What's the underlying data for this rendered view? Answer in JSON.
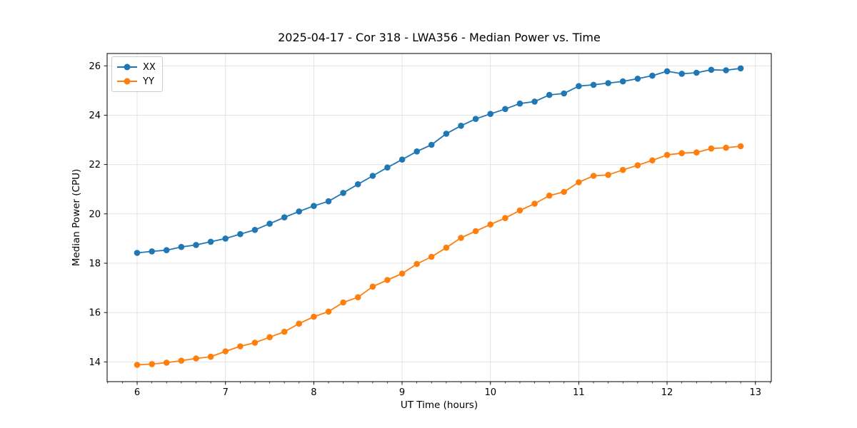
{
  "chart_data": {
    "type": "line",
    "title": "2025-04-17 - Cor 318 - LWA356 - Median Power vs. Time",
    "xlabel": "UT Time (hours)",
    "ylabel": "Median Power (CPU)",
    "xlim": [
      5.66,
      13.18
    ],
    "ylim": [
      13.2,
      26.5
    ],
    "x_ticks": [
      6,
      7,
      8,
      9,
      10,
      11,
      12,
      13
    ],
    "y_ticks": [
      14,
      16,
      18,
      20,
      22,
      24,
      26
    ],
    "x_minor_tick_step": 0.166667,
    "grid": true,
    "grid_color": "#e0e0e0",
    "background": "#ffffff",
    "legend_position": "upper left",
    "marker": "circle",
    "x": [
      6.0,
      6.167,
      6.333,
      6.5,
      6.667,
      6.833,
      7.0,
      7.167,
      7.333,
      7.5,
      7.667,
      7.833,
      8.0,
      8.167,
      8.333,
      8.5,
      8.667,
      8.833,
      9.0,
      9.167,
      9.333,
      9.5,
      9.667,
      9.833,
      10.0,
      10.167,
      10.333,
      10.5,
      10.667,
      10.833,
      11.0,
      11.167,
      11.333,
      11.5,
      11.667,
      11.833,
      12.0,
      12.167,
      12.333,
      12.5,
      12.667,
      12.833
    ],
    "series": [
      {
        "name": "XX",
        "color": "#1f77b4",
        "values": [
          18.42,
          18.48,
          18.53,
          18.66,
          18.74,
          18.87,
          19.0,
          19.18,
          19.35,
          19.6,
          19.86,
          20.1,
          20.32,
          20.51,
          20.85,
          21.2,
          21.54,
          21.88,
          22.2,
          22.53,
          22.8,
          23.25,
          23.57,
          23.85,
          24.05,
          24.25,
          24.47,
          24.55,
          24.82,
          24.88,
          25.18,
          25.23,
          25.3,
          25.37,
          25.48,
          25.6,
          25.78,
          25.68,
          25.72,
          25.84,
          25.82,
          25.9
        ]
      },
      {
        "name": "YY",
        "color": "#ff7f0e",
        "values": [
          13.88,
          13.91,
          13.97,
          14.05,
          14.14,
          14.21,
          14.43,
          14.63,
          14.78,
          15.0,
          15.22,
          15.55,
          15.83,
          16.04,
          16.41,
          16.62,
          17.05,
          17.32,
          17.58,
          17.97,
          18.26,
          18.63,
          19.03,
          19.3,
          19.57,
          19.83,
          20.14,
          20.41,
          20.74,
          20.89,
          21.28,
          21.54,
          21.58,
          21.78,
          21.97,
          22.17,
          22.39,
          22.46,
          22.49,
          22.65,
          22.68,
          22.74
        ]
      }
    ]
  }
}
